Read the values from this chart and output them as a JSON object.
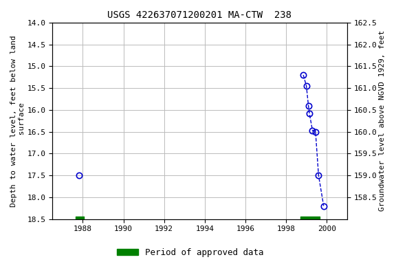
{
  "title": "USGS 422637071200201 MA-CTW  238",
  "ylabel_left": "Depth to water level, feet below land\n surface",
  "ylabel_right": "Groundwater level above NGVD 1929, feet",
  "ylim_left": [
    14.0,
    18.5
  ],
  "xlim": [
    1986.5,
    2001.0
  ],
  "xticks": [
    1988,
    1990,
    1992,
    1994,
    1996,
    1998,
    2000
  ],
  "yticks_left": [
    14.0,
    14.5,
    15.0,
    15.5,
    16.0,
    16.5,
    17.0,
    17.5,
    18.0,
    18.5
  ],
  "yticks_right": [
    162.5,
    162.0,
    161.5,
    161.0,
    160.5,
    160.0,
    159.5,
    159.0,
    158.5
  ],
  "land_surface_elev": 176.5,
  "isolated_point": {
    "year": 1987.8,
    "depth": 17.5
  },
  "cluster_points": [
    {
      "year": 1998.85,
      "depth": 15.2
    },
    {
      "year": 1999.0,
      "depth": 15.45
    },
    {
      "year": 1999.1,
      "depth": 15.9
    },
    {
      "year": 1999.15,
      "depth": 16.08
    },
    {
      "year": 1999.3,
      "depth": 16.47
    },
    {
      "year": 1999.45,
      "depth": 16.5
    },
    {
      "year": 1999.6,
      "depth": 17.5
    },
    {
      "year": 1999.85,
      "depth": 18.2
    }
  ],
  "approved_periods": [
    {
      "start": 1987.65,
      "end": 1988.05
    },
    {
      "start": 1998.7,
      "end": 1999.65
    }
  ],
  "data_color": "#0000cc",
  "approved_color": "#008000",
  "bg_color": "#ffffff",
  "grid_color": "#bbbbbb",
  "title_fontsize": 10,
  "axis_label_fontsize": 8,
  "tick_fontsize": 8,
  "legend_fontsize": 9
}
